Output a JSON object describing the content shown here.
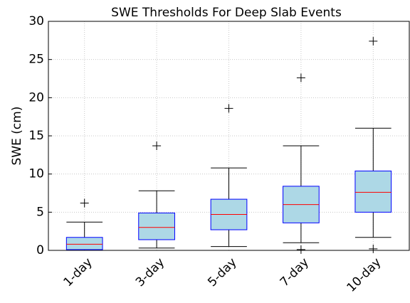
{
  "chart_data": {
    "type": "box",
    "title": "SWE Thresholds For Deep Slab Events",
    "ylabel": "SWE (cm)",
    "categories": [
      "1-day",
      "3-day",
      "5-day",
      "7-day",
      "10-day"
    ],
    "boxes": [
      {
        "whislo": 0,
        "q1": 0.1,
        "med": 0.8,
        "q3": 1.7,
        "whishi": 3.7,
        "fliers": [
          6.2
        ]
      },
      {
        "whislo": 0.3,
        "q1": 1.4,
        "med": 3.0,
        "q3": 4.9,
        "whishi": 7.8,
        "fliers": [
          13.7
        ]
      },
      {
        "whislo": 0.5,
        "q1": 2.7,
        "med": 4.7,
        "q3": 6.7,
        "whishi": 10.8,
        "fliers": [
          18.6
        ]
      },
      {
        "whislo": 1.0,
        "q1": 3.6,
        "med": 6.0,
        "q3": 8.4,
        "whishi": 13.7,
        "fliers": [
          22.6,
          0.1
        ]
      },
      {
        "whislo": 1.7,
        "q1": 5.0,
        "med": 7.6,
        "q3": 10.4,
        "whishi": 16.0,
        "fliers": [
          27.4,
          0.2
        ]
      }
    ],
    "box_color": "#add8e6",
    "edge_color": "#0000ff",
    "median_color": "#ff0000",
    "ylim": [
      0,
      30
    ],
    "yticks": [
      0,
      5,
      10,
      15,
      20,
      25,
      30
    ],
    "grid": true
  }
}
